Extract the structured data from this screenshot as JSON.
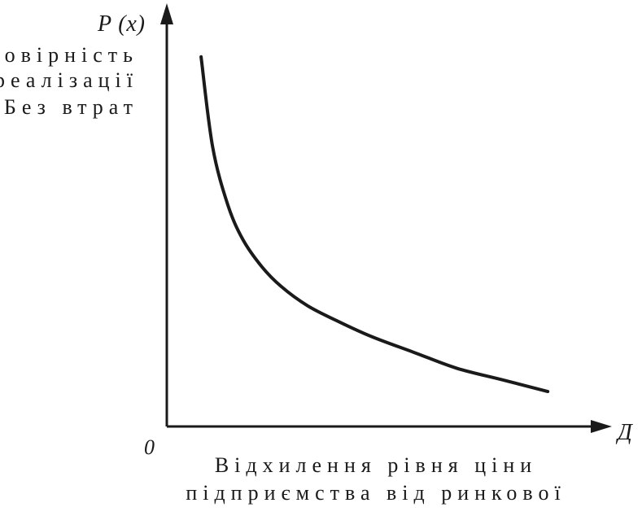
{
  "chart_data": {
    "type": "line",
    "title": "",
    "y_axis_symbol": "P (x)",
    "x_axis_symbol": "Д",
    "origin_label": "0",
    "ylabel_lines": [
      "Імовірність",
      "реалізації",
      "Без втрат"
    ],
    "xlabel_lines": [
      "Відхилення рівня ціни",
      "підприємства від ринкової"
    ],
    "grid": false,
    "legend": "none",
    "series": [
      {
        "x": [
          0.09,
          0.12,
          0.16,
          0.2,
          0.25,
          0.3,
          0.37,
          0.45,
          0.54,
          0.65,
          0.76,
          0.88,
          1.0
        ],
        "y": [
          0.95,
          0.72,
          0.57,
          0.48,
          0.41,
          0.36,
          0.31,
          0.27,
          0.23,
          0.19,
          0.15,
          0.12,
          0.09
        ]
      }
    ],
    "xlim": [
      0,
      1.1
    ],
    "ylim": [
      0,
      1.05
    ]
  },
  "colors": {
    "line": "#1a1a1a",
    "background": "#ffffff"
  }
}
